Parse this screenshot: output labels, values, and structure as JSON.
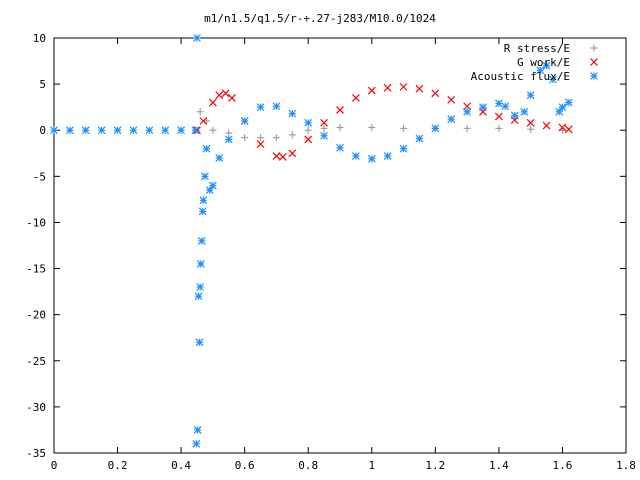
{
  "chart_data": {
    "type": "scatter",
    "title": "m1/n1.5/q1.5/r-+.27-j283/M10.0/1024",
    "xlabel": "",
    "ylabel": "",
    "xlim": [
      0,
      1.8
    ],
    "ylim": [
      -35,
      10
    ],
    "xticks": [
      0,
      0.2,
      0.4,
      0.6,
      0.8,
      1,
      1.2,
      1.4,
      1.6,
      1.8
    ],
    "xtick_labels": [
      "0",
      "0.2",
      "0.4",
      "0.6",
      "0.8",
      "1",
      "1.2",
      "1.4",
      "1.6",
      "1.8"
    ],
    "yticks": [
      10,
      5,
      0,
      -5,
      -10,
      -15,
      -20,
      -25,
      -30,
      -35
    ],
    "ytick_labels": [
      "10",
      "5",
      "0",
      "-5",
      "-10",
      "-15",
      "-20",
      "-25",
      "-30",
      "-35"
    ],
    "grid": false,
    "legend_position": "top-right",
    "series": [
      {
        "name": "R stress/E",
        "marker": "plus",
        "color": "#a0a0a0",
        "x": [
          0.45,
          0.46,
          0.48,
          0.5,
          0.55,
          0.6,
          0.65,
          0.7,
          0.75,
          0.8,
          0.85,
          0.9,
          1.0,
          1.1,
          1.2,
          1.3,
          1.4,
          1.5,
          1.6
        ],
        "y": [
          0,
          2,
          1,
          0,
          -0.3,
          -0.8,
          -0.8,
          -0.8,
          -0.5,
          0,
          0.2,
          0.3,
          0.3,
          0.2,
          0.2,
          0.2,
          0.2,
          0.1,
          0
        ]
      },
      {
        "name": "G work/E",
        "marker": "cross",
        "color": "#ff0000",
        "x": [
          0.45,
          0.47,
          0.5,
          0.52,
          0.54,
          0.56,
          0.6,
          0.65,
          0.7,
          0.72,
          0.75,
          0.8,
          0.85,
          0.9,
          0.95,
          1.0,
          1.05,
          1.1,
          1.15,
          1.2,
          1.25,
          1.3,
          1.35,
          1.4,
          1.45,
          1.5,
          1.55,
          1.6,
          1.62
        ],
        "y": [
          0,
          1,
          3,
          3.8,
          4,
          3.5,
          1,
          -1.5,
          -2.8,
          -2.9,
          -2.5,
          -1,
          0.8,
          2.2,
          3.5,
          4.3,
          4.6,
          4.7,
          4.5,
          4,
          3.3,
          2.6,
          2.0,
          1.5,
          1.1,
          0.8,
          0.5,
          0.3,
          0.1
        ]
      },
      {
        "name": "Acoustic flux/E",
        "marker": "star",
        "color": "#1e90ff",
        "x": [
          0,
          0.05,
          0.1,
          0.15,
          0.2,
          0.25,
          0.3,
          0.35,
          0.4,
          0.445,
          0.448,
          0.45,
          0.452,
          0.455,
          0.458,
          0.46,
          0.462,
          0.465,
          0.468,
          0.47,
          0.475,
          0.48,
          0.49,
          0.5,
          0.52,
          0.55,
          0.6,
          0.65,
          0.7,
          0.75,
          0.8,
          0.85,
          0.9,
          0.95,
          1.0,
          1.05,
          1.1,
          1.15,
          1.2,
          1.25,
          1.3,
          1.35,
          1.4,
          1.42,
          1.45,
          1.48,
          1.5,
          1.53,
          1.55,
          1.57,
          1.59,
          1.6,
          1.62
        ],
        "y": [
          0,
          0,
          0,
          0,
          0,
          0,
          0,
          0,
          0,
          0,
          -34,
          10,
          -32.5,
          -18,
          -23,
          -17,
          -14.5,
          -12,
          -8.8,
          -7.6,
          -5,
          -2,
          -6.5,
          -6,
          -3,
          -1,
          1,
          2.5,
          2.6,
          1.8,
          0.8,
          -0.6,
          -1.9,
          -2.8,
          -3.1,
          -2.8,
          -2,
          -0.9,
          0.2,
          1.2,
          2.0,
          2.5,
          2.9,
          2.6,
          1.6,
          2.0,
          3.8,
          6.5,
          7.0,
          5.5,
          2.0,
          2.5,
          3.0
        ]
      }
    ]
  }
}
